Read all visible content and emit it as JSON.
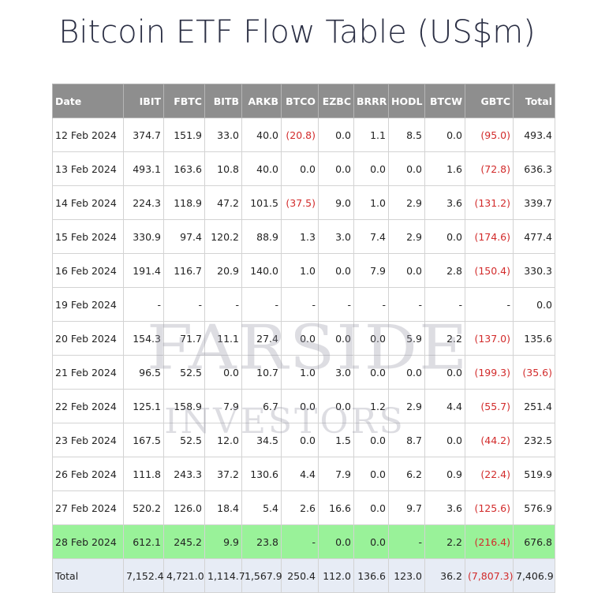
{
  "title": "Bitcoin ETF Flow Table (US$m)",
  "watermark": {
    "line1": "FARSIDE",
    "line2": "INVESTORS"
  },
  "colors": {
    "header_bg": "#8e8e8e",
    "negative": "#d22b2b",
    "highlight_row": "#99f299",
    "total_row": "#e7ecf5"
  },
  "columns": [
    "Date",
    "IBIT",
    "FBTC",
    "BITB",
    "ARKB",
    "BTCO",
    "EZBC",
    "BRRR",
    "HODL",
    "BTCW",
    "GBTC",
    "Total"
  ],
  "rows": [
    [
      "12 Feb 2024",
      "374.7",
      "151.9",
      "33.0",
      "40.0",
      "(20.8)",
      "0.0",
      "1.1",
      "8.5",
      "0.0",
      "(95.0)",
      "493.4"
    ],
    [
      "13 Feb 2024",
      "493.1",
      "163.6",
      "10.8",
      "40.0",
      "0.0",
      "0.0",
      "0.0",
      "0.0",
      "1.6",
      "(72.8)",
      "636.3"
    ],
    [
      "14 Feb 2024",
      "224.3",
      "118.9",
      "47.2",
      "101.5",
      "(37.5)",
      "9.0",
      "1.0",
      "2.9",
      "3.6",
      "(131.2)",
      "339.7"
    ],
    [
      "15 Feb 2024",
      "330.9",
      "97.4",
      "120.2",
      "88.9",
      "1.3",
      "3.0",
      "7.4",
      "2.9",
      "0.0",
      "(174.6)",
      "477.4"
    ],
    [
      "16 Feb 2024",
      "191.4",
      "116.7",
      "20.9",
      "140.0",
      "1.0",
      "0.0",
      "7.9",
      "0.0",
      "2.8",
      "(150.4)",
      "330.3"
    ],
    [
      "19 Feb 2024",
      "-",
      "-",
      "-",
      "-",
      "-",
      "-",
      "-",
      "-",
      "-",
      "-",
      "0.0"
    ],
    [
      "20 Feb 2024",
      "154.3",
      "71.7",
      "11.1",
      "27.4",
      "0.0",
      "0.0",
      "0.0",
      "5.9",
      "2.2",
      "(137.0)",
      "135.6"
    ],
    [
      "21 Feb 2024",
      "96.5",
      "52.5",
      "0.0",
      "10.7",
      "1.0",
      "3.0",
      "0.0",
      "0.0",
      "0.0",
      "(199.3)",
      "(35.6)"
    ],
    [
      "22 Feb 2024",
      "125.1",
      "158.9",
      "7.9",
      "6.7",
      "0.0",
      "0.0",
      "1.2",
      "2.9",
      "4.4",
      "(55.7)",
      "251.4"
    ],
    [
      "23 Feb 2024",
      "167.5",
      "52.5",
      "12.0",
      "34.5",
      "0.0",
      "1.5",
      "0.0",
      "8.7",
      "0.0",
      "(44.2)",
      "232.5"
    ],
    [
      "26 Feb 2024",
      "111.8",
      "243.3",
      "37.2",
      "130.6",
      "4.4",
      "7.9",
      "0.0",
      "6.2",
      "0.9",
      "(22.4)",
      "519.9"
    ],
    [
      "27 Feb 2024",
      "520.2",
      "126.0",
      "18.4",
      "5.4",
      "2.6",
      "16.6",
      "0.0",
      "9.7",
      "3.6",
      "(125.6)",
      "576.9"
    ],
    [
      "28 Feb 2024",
      "612.1",
      "245.2",
      "9.9",
      "23.8",
      "-",
      "0.0",
      "0.0",
      "-",
      "2.2",
      "(216.4)",
      "676.8"
    ]
  ],
  "highlight_row_index": 12,
  "total_row": [
    "Total",
    "7,152.4",
    "4,721.0",
    "1,114.7",
    "1,567.9",
    "250.4",
    "112.0",
    "136.6",
    "123.0",
    "36.2",
    "(7,807.3)",
    "7,406.9"
  ]
}
